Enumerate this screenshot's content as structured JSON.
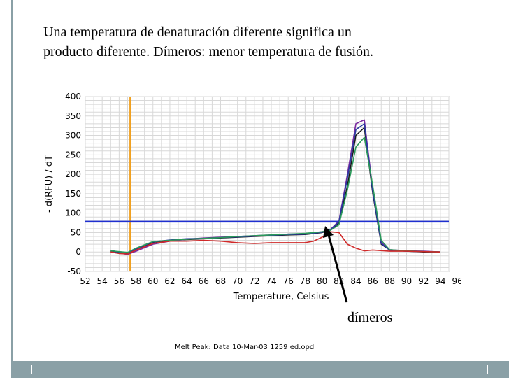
{
  "caption": {
    "line1": "Una temperatura de denaturación diferente significa un",
    "line2": "producto diferente.  Dímeros:  menor temperatura de fusión."
  },
  "annotation": "dímeros",
  "footnote": "Melt Peak: Data 10-Mar-03 1259 ed.opd",
  "chart_data": {
    "type": "line",
    "title": "",
    "xlabel": "Temperature, Celsius",
    "ylabel": "- d(RFU) / dT",
    "xlim": [
      52,
      95
    ],
    "ylim": [
      -50,
      400
    ],
    "xticks": [
      "52",
      "54",
      "56",
      "58",
      "60",
      "62",
      "64",
      "66",
      "68",
      "70",
      "72",
      "74",
      "76",
      "78",
      "80",
      "82",
      "84",
      "86",
      "88",
      "90",
      "92",
      "94",
      "96"
    ],
    "yticks": [
      400,
      350,
      300,
      250,
      200,
      150,
      100,
      50,
      0,
      -50
    ],
    "grid": true,
    "threshold": {
      "y": 78,
      "color": "#1f2fd0"
    },
    "marker_line": {
      "x": 57.3,
      "color": "#f0a020"
    },
    "series": [
      {
        "color": "#1a1a1a",
        "x": [
          55,
          56,
          57,
          58,
          60,
          62,
          64,
          66,
          68,
          70,
          72,
          74,
          76,
          78,
          80,
          81,
          82,
          83,
          84,
          85,
          86,
          87,
          88,
          90,
          92,
          94
        ],
        "y": [
          2,
          -2,
          -3,
          5,
          25,
          30,
          32,
          34,
          36,
          38,
          40,
          42,
          44,
          45,
          50,
          56,
          75,
          170,
          300,
          320,
          150,
          20,
          5,
          2,
          0,
          0
        ]
      },
      {
        "color": "#7a2aa0",
        "x": [
          55,
          56,
          57,
          58,
          60,
          62,
          64,
          66,
          68,
          70,
          72,
          74,
          76,
          78,
          80,
          81,
          82,
          83,
          84,
          85,
          86,
          87,
          88,
          90,
          92,
          94
        ],
        "y": [
          0,
          -3,
          -6,
          2,
          20,
          28,
          33,
          36,
          38,
          40,
          42,
          44,
          46,
          47,
          52,
          58,
          80,
          200,
          330,
          340,
          160,
          25,
          6,
          3,
          2,
          0
        ]
      },
      {
        "color": "#2a3aa0",
        "x": [
          55,
          56,
          57,
          58,
          60,
          62,
          64,
          66,
          68,
          70,
          72,
          74,
          76,
          78,
          80,
          81,
          82,
          83,
          84,
          85,
          86,
          87,
          88,
          90,
          92,
          94
        ],
        "y": [
          4,
          0,
          -2,
          8,
          26,
          31,
          34,
          35,
          37,
          39,
          41,
          43,
          45,
          46,
          51,
          57,
          78,
          190,
          315,
          330,
          155,
          22,
          5,
          2,
          1,
          0
        ]
      },
      {
        "color": "#2a9a5a",
        "x": [
          55,
          56,
          57,
          58,
          60,
          62,
          64,
          66,
          68,
          70,
          72,
          74,
          76,
          78,
          80,
          81,
          82,
          83,
          84,
          85,
          86,
          87,
          88,
          90,
          92,
          94
        ],
        "y": [
          3,
          1,
          -1,
          10,
          27,
          30,
          33,
          35,
          37,
          40,
          42,
          44,
          46,
          48,
          52,
          56,
          70,
          160,
          270,
          295,
          170,
          30,
          6,
          3,
          1,
          0
        ]
      },
      {
        "color": "#d02a2a",
        "x": [
          55,
          56,
          57,
          58,
          60,
          62,
          64,
          66,
          68,
          70,
          72,
          74,
          76,
          78,
          79,
          80,
          81,
          82,
          83,
          84,
          85,
          86,
          88,
          90,
          92,
          94
        ],
        "y": [
          0,
          -4,
          -5,
          5,
          22,
          28,
          28,
          30,
          28,
          24,
          22,
          24,
          24,
          24,
          28,
          38,
          52,
          50,
          20,
          10,
          3,
          5,
          2,
          2,
          1,
          0
        ]
      }
    ]
  }
}
